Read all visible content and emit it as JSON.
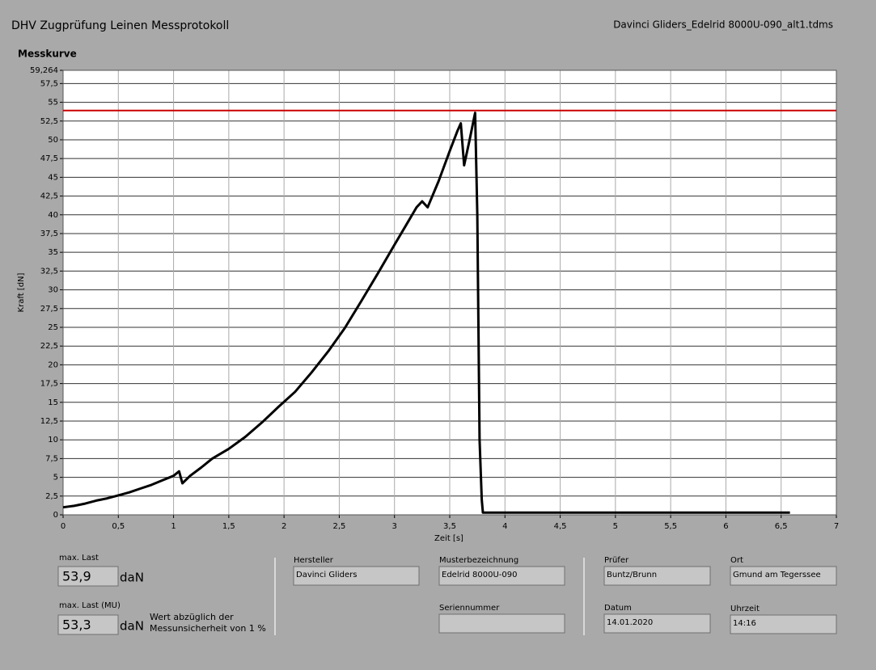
{
  "header": {
    "title": "DHV Zugprüfung Leinen Messprotokoll",
    "file": "Davinci Gliders_Edelrid 8000U-090_alt1.tdms"
  },
  "chart_data": {
    "type": "line",
    "title": "Messkurve",
    "xlabel": "Zeit [s]",
    "ylabel": "Kraft [dN]",
    "xlim": [
      0,
      7
    ],
    "ylim": [
      0,
      59.264
    ],
    "xticks": [
      0,
      {
        "value": 0.5,
        "label": "0,5"
      },
      1,
      {
        "value": 1.5,
        "label": "1,5"
      },
      2,
      {
        "value": 2.5,
        "label": "2,5"
      },
      3,
      {
        "value": 3.5,
        "label": "3,5"
      },
      4,
      {
        "value": 4.5,
        "label": "4,5"
      },
      5,
      {
        "value": 5.5,
        "label": "5,5"
      },
      6,
      {
        "value": 6.5,
        "label": "6,5"
      },
      7
    ],
    "yticks": [
      0,
      {
        "value": 2.5,
        "label": "2,5"
      },
      5,
      {
        "value": 7.5,
        "label": "7,5"
      },
      10,
      {
        "value": 12.5,
        "label": "12,5"
      },
      15,
      {
        "value": 17.5,
        "label": "17,5"
      },
      20,
      {
        "value": 22.5,
        "label": "22,5"
      },
      25,
      {
        "value": 27.5,
        "label": "27,5"
      },
      30,
      {
        "value": 32.5,
        "label": "32,5"
      },
      35,
      {
        "value": 37.5,
        "label": "37,5"
      },
      40,
      {
        "value": 42.5,
        "label": "42,5"
      },
      45,
      {
        "value": 47.5,
        "label": "47,5"
      },
      50,
      {
        "value": 52.5,
        "label": "52,5"
      },
      55,
      {
        "value": 57.5,
        "label": "57,5"
      },
      {
        "value": 59.264,
        "label": "59,264"
      }
    ],
    "grid": true,
    "threshold_color": "#cc0000",
    "series": [
      {
        "color": "#000000",
        "x": [
          0,
          0.1,
          0.2,
          0.3,
          0.4,
          0.5,
          0.6,
          0.7,
          0.8,
          0.9,
          1.0,
          1.05,
          1.08,
          1.15,
          1.25,
          1.35,
          1.5,
          1.65,
          1.8,
          1.95,
          2.1,
          2.25,
          2.4,
          2.55,
          2.7,
          2.85,
          3.0,
          3.1,
          3.2,
          3.25,
          3.3,
          3.4,
          3.5,
          3.57,
          3.6,
          3.63,
          3.68,
          3.73,
          3.75,
          3.77,
          3.79,
          3.8,
          4.0,
          4.5,
          5.0,
          5.5,
          6.0,
          6.5,
          6.58
        ],
        "values": [
          1,
          1.2,
          1.5,
          1.9,
          2.2,
          2.6,
          3,
          3.5,
          4,
          4.6,
          5.2,
          5.8,
          4.2,
          5.2,
          6.3,
          7.5,
          8.8,
          10.4,
          12.3,
          14.4,
          16.4,
          19,
          21.8,
          24.9,
          28.5,
          32.2,
          36,
          38.5,
          41,
          41.8,
          41,
          44.5,
          48.5,
          51.2,
          52.2,
          46.6,
          50,
          53.6,
          40,
          10,
          2,
          0.3,
          0.3,
          0.3,
          0.3,
          0.3,
          0.3,
          0.3,
          0.3
        ]
      }
    ]
  },
  "results": {
    "max_last_label": "max. Last",
    "max_last": {
      "value": 53.9,
      "label": "53,9"
    },
    "unit": "daN",
    "max_last_mu_label": "max. Last (MU)",
    "max_last_mu": {
      "value": 53.3,
      "label": "53,3"
    },
    "note_1": "Wert abzüglich der",
    "note_2": "Messunsicherheit von 1 %"
  },
  "fields": {
    "hersteller_label": "Hersteller",
    "hersteller": "Davinci Gliders",
    "muster_label": "Musterbezeichnung",
    "muster": "Edelrid 8000U-090",
    "serien_label": "Seriennummer",
    "pruefer_label": "Prüfer",
    "pruefer": "Buntz/Brunn",
    "ort_label": "Ort",
    "ort": "Gmund am Tegerssee",
    "datum_label": "Datum",
    "datum": "14.01.2020",
    "uhrzeit_label": "Uhrzeit",
    "uhrzeit": "14:16"
  }
}
